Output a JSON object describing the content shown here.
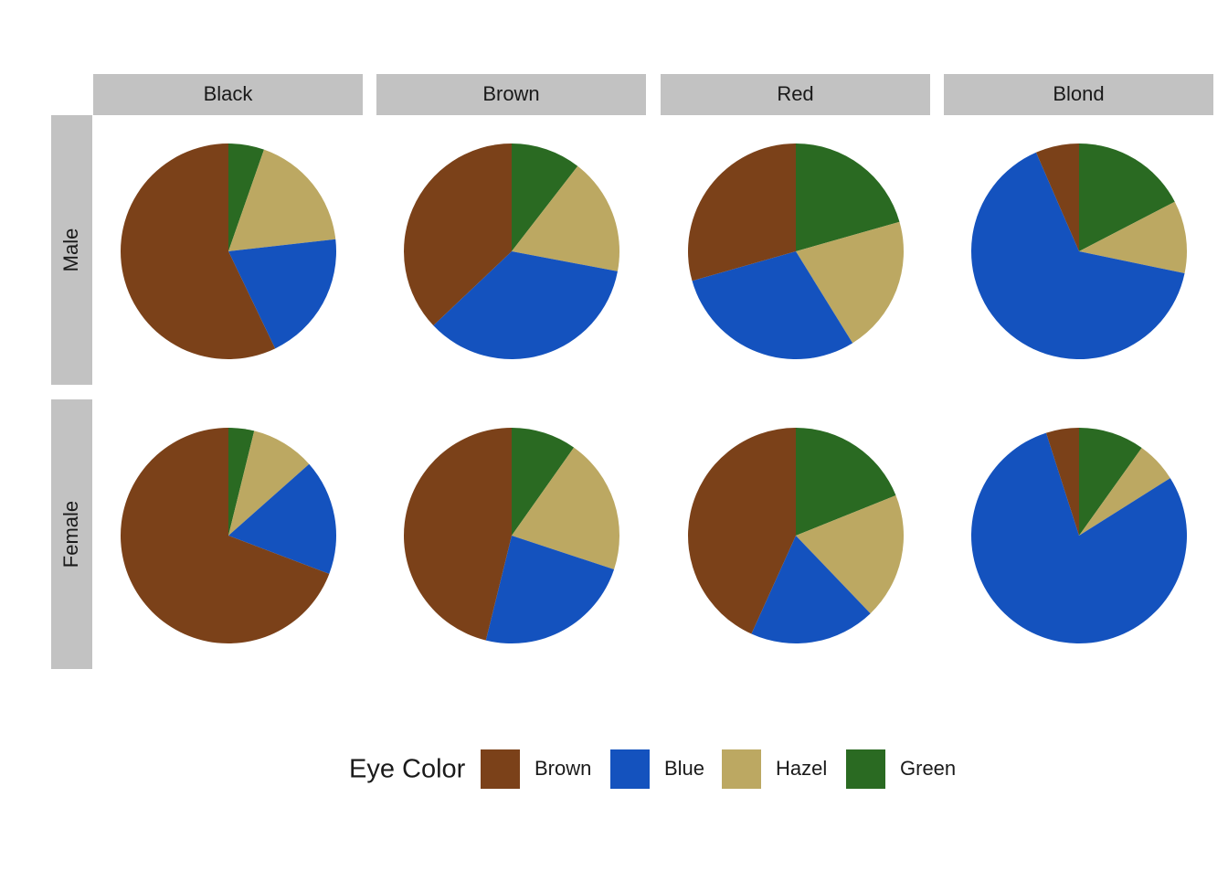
{
  "chart_data": {
    "type": "pie",
    "legend_title": "Eye Color",
    "categories": [
      "Brown",
      "Blue",
      "Hazel",
      "Green"
    ],
    "colors": [
      "#7b4119",
      "#1452be",
      "#bca862",
      "#2a6a22"
    ],
    "columns": [
      "Black",
      "Brown",
      "Red",
      "Blond"
    ],
    "rows": [
      "Male",
      "Female"
    ],
    "values": [
      [
        [
          32,
          11,
          10,
          3
        ],
        [
          53,
          50,
          25,
          15
        ],
        [
          10,
          10,
          7,
          7
        ],
        [
          3,
          30,
          5,
          8
        ]
      ],
      [
        [
          36,
          9,
          5,
          2
        ],
        [
          66,
          34,
          29,
          14
        ],
        [
          16,
          7,
          7,
          7
        ],
        [
          4,
          64,
          5,
          8
        ]
      ]
    ]
  }
}
